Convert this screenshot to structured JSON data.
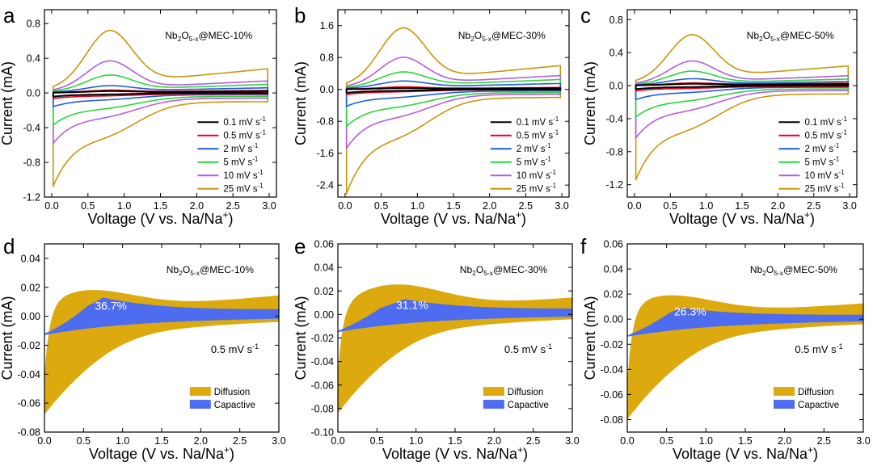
{
  "figure": {
    "panels_top": [
      "a",
      "b",
      "c"
    ],
    "panels_bottom": [
      "d",
      "e",
      "f"
    ]
  },
  "chart_data": [
    {
      "panel": "a",
      "type": "line",
      "title": "Nb2O5-x@MEC-10%",
      "title_base": "Nb",
      "title_sub1": "2",
      "title_mid": "O",
      "title_sub2": "5-x",
      "title_tail": "@MEC-10%",
      "xlabel": "Voltage (V vs. Na/Na",
      "xlabel_sup": "+",
      "xlabel_end": ")",
      "ylabel": "Current (mA)",
      "xlim": [
        -0.1,
        3.1
      ],
      "ylim": [
        -1.2,
        0.96
      ],
      "xticks": [
        0.0,
        0.5,
        1.0,
        1.5,
        2.0,
        2.5,
        3.0
      ],
      "xtick_labels": [
        "0.0",
        "0.5",
        "1.0",
        "1.5",
        "2.0",
        "2.5",
        "3.0"
      ],
      "yticks": [
        -1.2,
        -0.8,
        -0.4,
        0.0,
        0.4,
        0.8
      ],
      "ytick_labels": [
        "-1.2",
        "-0.8",
        "-0.4",
        "0.0",
        "0.4",
        "0.8"
      ],
      "legend_position": "bottom-right",
      "series": [
        {
          "name": "0.1 mV s",
          "name_sup": "-1",
          "color": "#000000",
          "peak": 0.02,
          "min": -0.04,
          "end": 0.02,
          "back": 0.0
        },
        {
          "name": "0.5 mV s",
          "name_sup": "-1",
          "color": "#e8001c",
          "peak": 0.03,
          "min": -0.06,
          "end": 0.03,
          "back": -0.01
        },
        {
          "name": "2 mV s",
          "name_sup": "-1",
          "color": "#1f5fd6",
          "peak": 0.08,
          "min": -0.15,
          "end": 0.06,
          "back": -0.02
        },
        {
          "name": "5 mV s",
          "name_sup": "-1",
          "color": "#2fd33a",
          "peak": 0.2,
          "min": -0.35,
          "end": 0.1,
          "back": -0.04
        },
        {
          "name": "10 mV s",
          "name_sup": "-1",
          "color": "#b75ce0",
          "peak": 0.36,
          "min": -0.55,
          "end": 0.14,
          "back": -0.06
        },
        {
          "name": "25 mV s",
          "name_sup": "-1",
          "color": "#c8960c",
          "peak": 0.7,
          "min": -1.02,
          "end": 0.28,
          "back": -0.1
        }
      ]
    },
    {
      "panel": "b",
      "type": "line",
      "title": "Nb2O5-x@MEC-30%",
      "title_base": "Nb",
      "title_sub1": "2",
      "title_mid": "O",
      "title_sub2": "5-x",
      "title_tail": "@MEC-30%",
      "xlabel": "Voltage (V vs. Na/Na",
      "xlabel_sup": "+",
      "xlabel_end": ")",
      "ylabel": "Current (mA)",
      "xlim": [
        -0.1,
        3.1
      ],
      "ylim": [
        -2.7,
        2.0
      ],
      "xticks": [
        0.0,
        0.5,
        1.0,
        1.5,
        2.0,
        2.5,
        3.0
      ],
      "xtick_labels": [
        "0.0",
        "0.5",
        "1.0",
        "1.5",
        "2.0",
        "2.5",
        "3.0"
      ],
      "yticks": [
        -2.4,
        -1.6,
        -0.8,
        0.0,
        0.8,
        1.6
      ],
      "ytick_labels": [
        "-2.4",
        "-1.6",
        "-0.8",
        "0.0",
        "0.8",
        "1.6"
      ],
      "legend_position": "bottom-right",
      "series": [
        {
          "name": "0.1 mV s",
          "name_sup": "-1",
          "color": "#000000",
          "peak": 0.03,
          "min": -0.08,
          "end": 0.03,
          "back": 0.0
        },
        {
          "name": "0.5 mV s",
          "name_sup": "-1",
          "color": "#e8001c",
          "peak": 0.06,
          "min": -0.12,
          "end": 0.05,
          "back": -0.01
        },
        {
          "name": "2 mV s",
          "name_sup": "-1",
          "color": "#1f5fd6",
          "peak": 0.2,
          "min": -0.4,
          "end": 0.15,
          "back": -0.04
        },
        {
          "name": "5 mV s",
          "name_sup": "-1",
          "color": "#2fd33a",
          "peak": 0.42,
          "min": -0.88,
          "end": 0.25,
          "back": -0.08
        },
        {
          "name": "10 mV s",
          "name_sup": "-1",
          "color": "#b75ce0",
          "peak": 0.78,
          "min": -1.4,
          "end": 0.35,
          "back": -0.12
        },
        {
          "name": "25 mV s",
          "name_sup": "-1",
          "color": "#c8960c",
          "peak": 1.5,
          "min": -2.48,
          "end": 0.6,
          "back": -0.2
        }
      ]
    },
    {
      "panel": "c",
      "type": "line",
      "title": "Nb2O5-x@MEC-50%",
      "title_base": "Nb",
      "title_sub1": "2",
      "title_mid": "O",
      "title_sub2": "5-x",
      "title_tail": "@MEC-50%",
      "xlabel": "Voltage (V vs. Na/Na",
      "xlabel_sup": "+",
      "xlabel_end": ")",
      "ylabel": "Current (mA)",
      "xlim": [
        -0.1,
        3.1
      ],
      "ylim": [
        -1.35,
        0.92
      ],
      "xticks": [
        0.0,
        0.5,
        1.0,
        1.5,
        2.0,
        2.5,
        3.0
      ],
      "xtick_labels": [
        "0.0",
        "0.5",
        "1.0",
        "1.5",
        "2.0",
        "2.5",
        "3.0"
      ],
      "yticks": [
        -1.2,
        -0.8,
        -0.4,
        0.0,
        0.4,
        0.8
      ],
      "ytick_labels": [
        "-1.2",
        "-0.8",
        "-0.4",
        "0.0",
        "0.4",
        "0.8"
      ],
      "legend_position": "bottom-right",
      "series": [
        {
          "name": "0.1 mV s",
          "name_sup": "-1",
          "color": "#000000",
          "peak": 0.02,
          "min": -0.04,
          "end": 0.02,
          "back": 0.0
        },
        {
          "name": "0.5 mV s",
          "name_sup": "-1",
          "color": "#e8001c",
          "peak": 0.03,
          "min": -0.06,
          "end": 0.03,
          "back": -0.01
        },
        {
          "name": "2 mV s",
          "name_sup": "-1",
          "color": "#1f5fd6",
          "peak": 0.08,
          "min": -0.16,
          "end": 0.05,
          "back": -0.02
        },
        {
          "name": "5 mV s",
          "name_sup": "-1",
          "color": "#2fd33a",
          "peak": 0.17,
          "min": -0.36,
          "end": 0.08,
          "back": -0.04
        },
        {
          "name": "10 mV s",
          "name_sup": "-1",
          "color": "#b75ce0",
          "peak": 0.29,
          "min": -0.6,
          "end": 0.12,
          "back": -0.06
        },
        {
          "name": "25 mV s",
          "name_sup": "-1",
          "color": "#c8960c",
          "peak": 0.6,
          "min": -1.08,
          "end": 0.24,
          "back": -0.1
        }
      ]
    },
    {
      "panel": "d",
      "type": "area",
      "title": "Nb2O5-x@MEC-10%",
      "title_base": "Nb",
      "title_sub1": "2",
      "title_mid": "O",
      "title_sub2": "5-x",
      "title_tail": "@MEC-10%",
      "xlabel": "Voltage (V vs. Na/Na",
      "xlabel_sup": "+",
      "xlabel_end": ")",
      "ylabel": "Current (mA)",
      "xlim": [
        0.0,
        3.0
      ],
      "ylim": [
        -0.08,
        0.05
      ],
      "xticks": [
        0.0,
        0.5,
        1.0,
        1.5,
        2.0,
        2.5,
        3.0
      ],
      "xtick_labels": [
        "0.0",
        "0.5",
        "1.0",
        "1.5",
        "2.0",
        "2.5",
        "3.0"
      ],
      "yticks": [
        -0.08,
        -0.06,
        -0.04,
        -0.02,
        0.0,
        0.02,
        0.04
      ],
      "ytick_labels": [
        "-0.08",
        "-0.06",
        "-0.04",
        "-0.02",
        "0.00",
        "0.02",
        "0.04"
      ],
      "scan_rate": "0.5 mV s",
      "scan_rate_sup": "-1",
      "capacitive_percent": "36.7%",
      "legend": [
        {
          "name": "Diffusion",
          "color": "#dca90e"
        },
        {
          "name": "Capactive",
          "color": "#4d6cf0"
        }
      ],
      "legend_position": "bottom-right",
      "diffusion": {
        "peak": 0.021,
        "peak_v": 0.5,
        "end": 0.016,
        "min": -0.066,
        "start": -0.04
      },
      "capacitive": {
        "peak": 0.013,
        "peak_v": 0.75,
        "end": 0.004,
        "min": -0.012
      }
    },
    {
      "panel": "e",
      "type": "area",
      "title": "Nb2O5-x@MEC-30%",
      "title_base": "Nb",
      "title_sub1": "2",
      "title_mid": "O",
      "title_sub2": "5-x",
      "title_tail": "@MEC-30%",
      "xlabel": "Voltage (V vs. Na/Na",
      "xlabel_sup": "+",
      "xlabel_end": ")",
      "ylabel": "Current (mA)",
      "xlim": [
        0.0,
        3.0
      ],
      "ylim": [
        -0.1,
        0.06
      ],
      "xticks": [
        0.0,
        0.5,
        1.0,
        1.5,
        2.0,
        2.5,
        3.0
      ],
      "xtick_labels": [
        "0.0",
        "0.5",
        "1.0",
        "1.5",
        "2.0",
        "2.5",
        "3.0"
      ],
      "yticks": [
        -0.1,
        -0.08,
        -0.06,
        -0.04,
        -0.02,
        0.0,
        0.02,
        0.04,
        0.06
      ],
      "ytick_labels": [
        "-0.10",
        "-0.08",
        "-0.06",
        "-0.04",
        "-0.02",
        "0.00",
        "0.02",
        "0.04",
        "0.06"
      ],
      "scan_rate": "0.5 mV s",
      "scan_rate_sup": "-1",
      "capacitive_percent": "31.1%",
      "legend": [
        {
          "name": "Diffusion",
          "color": "#dca90e"
        },
        {
          "name": "Capactive",
          "color": "#4d6cf0"
        }
      ],
      "legend_position": "bottom-right",
      "diffusion": {
        "peak": 0.028,
        "peak_v": 0.7,
        "end": 0.016,
        "min": -0.082,
        "start": -0.05
      },
      "capacitive": {
        "peak": 0.013,
        "peak_v": 0.85,
        "end": 0.004,
        "min": -0.014
      }
    },
    {
      "panel": "f",
      "type": "area",
      "title": "Nb2O5-x@MEC-50%",
      "title_base": "Nb",
      "title_sub1": "2",
      "title_mid": "O",
      "title_sub2": "5-x",
      "title_tail": "@MEC-50%",
      "xlabel": "Voltage (V vs. Na/Na",
      "xlabel_sup": "+",
      "xlabel_end": ")",
      "ylabel": "Current (mA)",
      "xlim": [
        0.0,
        3.0
      ],
      "ylim": [
        -0.09,
        0.06
      ],
      "xticks": [
        0.0,
        0.5,
        1.0,
        1.5,
        2.0,
        2.5,
        3.0
      ],
      "xtick_labels": [
        "0.0",
        "0.5",
        "1.0",
        "1.5",
        "2.0",
        "2.5",
        "3.0"
      ],
      "yticks": [
        -0.08,
        -0.06,
        -0.04,
        -0.02,
        0.0,
        0.02,
        0.04,
        0.06
      ],
      "ytick_labels": [
        "-0.08",
        "-0.06",
        "-0.04",
        "-0.02",
        "0.00",
        "0.02",
        "0.04",
        "0.06"
      ],
      "scan_rate": "0.5 mV s",
      "scan_rate_sup": "-1",
      "capacitive_percent": "26.3%",
      "legend": [
        {
          "name": "Diffusion",
          "color": "#dca90e"
        },
        {
          "name": "Capactive",
          "color": "#4d6cf0"
        }
      ],
      "legend_position": "bottom-right",
      "diffusion": {
        "peak": 0.022,
        "peak_v": 0.45,
        "end": 0.014,
        "min": -0.078,
        "start": -0.05
      },
      "capacitive": {
        "peak": 0.009,
        "peak_v": 0.7,
        "end": 0.003,
        "min": -0.013
      }
    }
  ]
}
